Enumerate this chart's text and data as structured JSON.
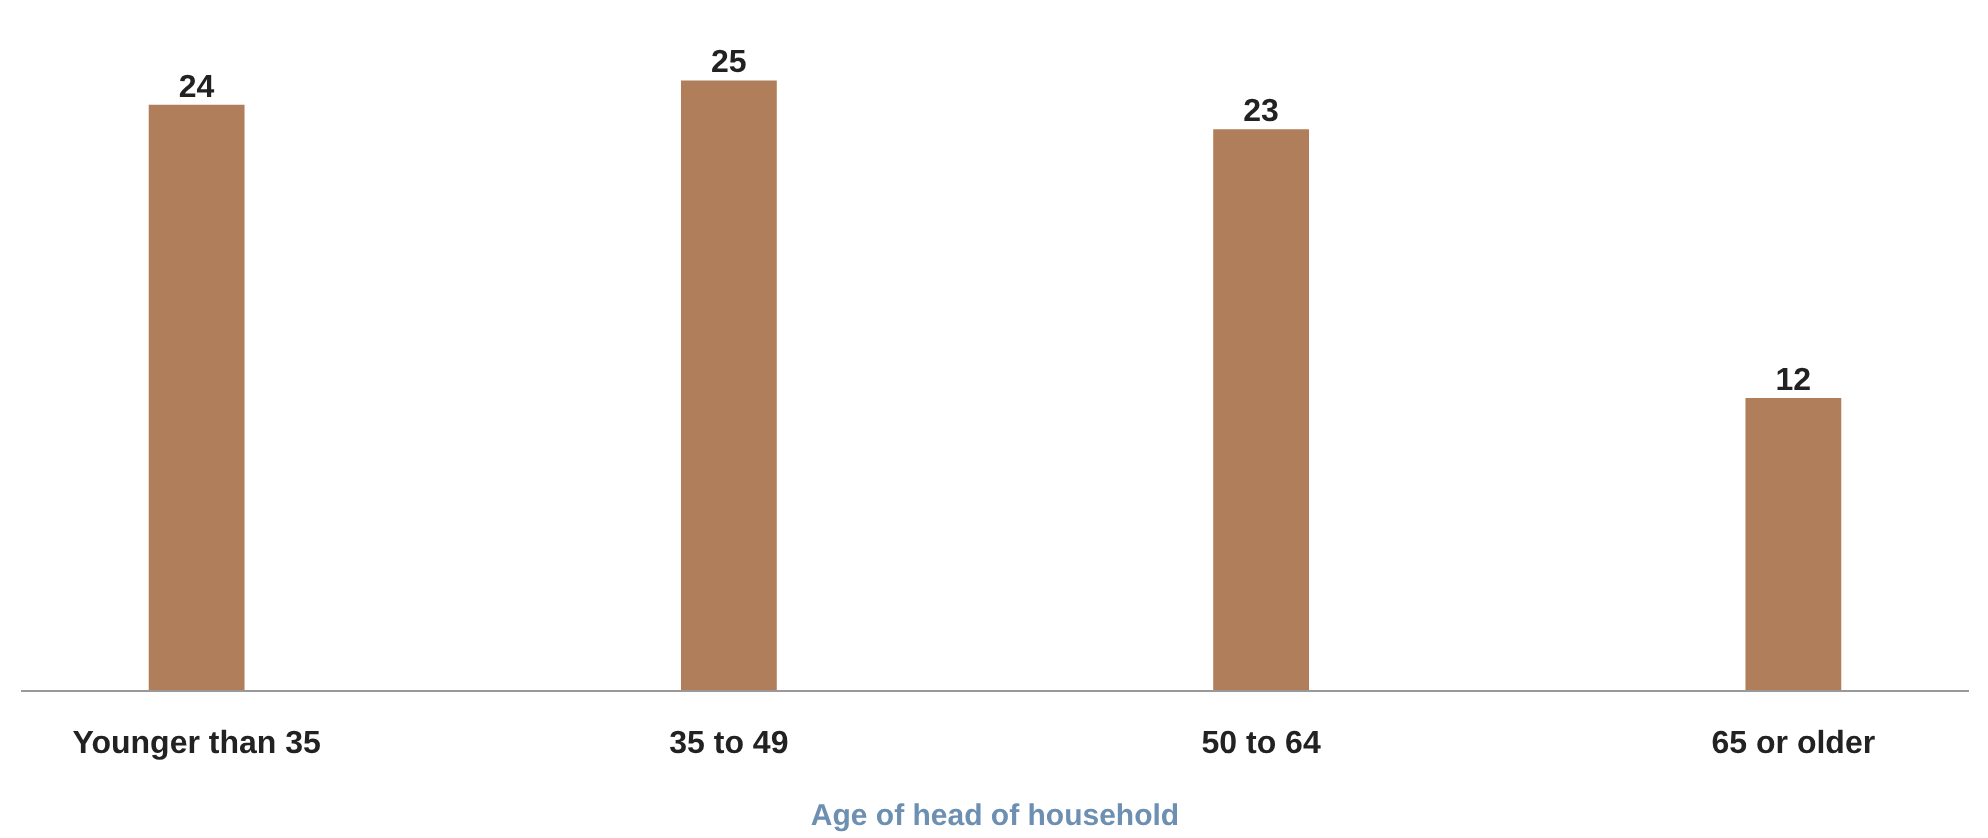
{
  "chart_data": {
    "type": "bar",
    "xlabel": "Age of head of household",
    "categories": [
      "Younger than 35",
      "35 to 49",
      "50 to 64",
      "65 or older"
    ],
    "values": [
      24,
      25,
      23,
      12
    ],
    "color": "#b07e5a",
    "data_labels": true,
    "grid": false
  }
}
